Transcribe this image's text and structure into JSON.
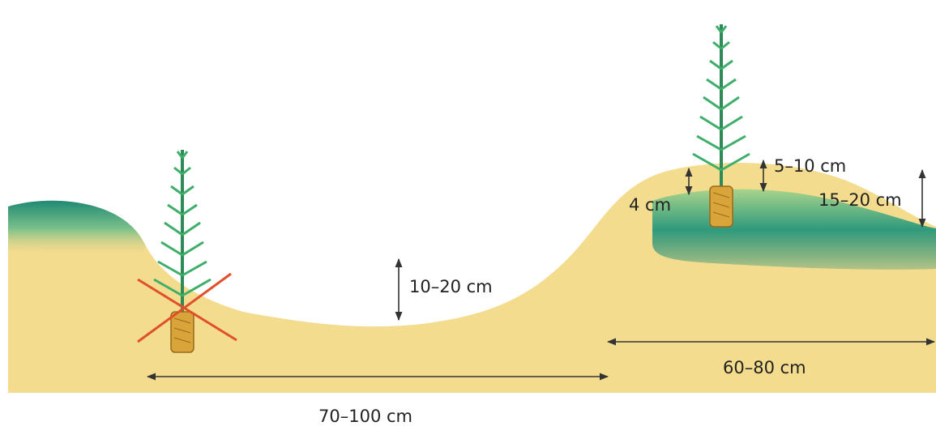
{
  "measurements": [
    "5–10 cm",
    "4 cm",
    "15–20 cm",
    "10–20 cm",
    "60–80 cm",
    "70–100 cm"
  ]
}
